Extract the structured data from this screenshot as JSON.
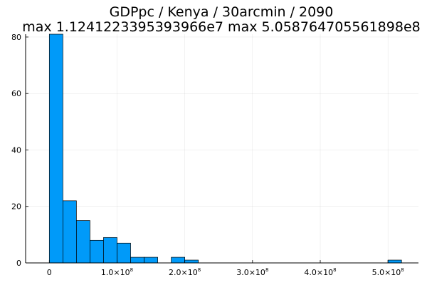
{
  "chart_data": {
    "type": "bar",
    "title": "GDPpc / Kenya / 30arcmin / 2090",
    "subtitle": "max 1.1241223395393966e7  max 5.058764705561898e8",
    "xlabel": "",
    "ylabel": "",
    "xlim": [
      -35000000.0,
      545000000.0
    ],
    "ylim": [
      0,
      81
    ],
    "grid": true,
    "legend": "none",
    "bar_color": "#009af9",
    "bar_edge_color": "#000000",
    "bin_width": 20000000.0,
    "bins_start": [
      0,
      20000000.0,
      40000000.0,
      60000000.0,
      80000000.0,
      100000000.0,
      120000000.0,
      140000000.0,
      160000000.0,
      180000000.0,
      200000000.0,
      220000000.0,
      240000000.0,
      260000000.0,
      280000000.0,
      300000000.0,
      320000000.0,
      340000000.0,
      360000000.0,
      380000000.0,
      400000000.0,
      420000000.0,
      440000000.0,
      460000000.0,
      480000000.0,
      500000000.0
    ],
    "values": [
      81,
      22,
      15,
      8,
      9,
      7,
      2,
      2,
      0,
      2,
      1,
      0,
      0,
      0,
      0,
      0,
      0,
      0,
      0,
      0,
      0,
      0,
      0,
      0,
      0,
      1
    ],
    "y_ticks": [
      {
        "value": 0,
        "label": "0"
      },
      {
        "value": 20,
        "label": "20"
      },
      {
        "value": 40,
        "label": "40"
      },
      {
        "value": 60,
        "label": "60"
      },
      {
        "value": 80,
        "label": "80"
      }
    ],
    "x_ticks": [
      {
        "value": 0,
        "label": "0",
        "exp": ""
      },
      {
        "value": 100000000.0,
        "label": "1.0×10",
        "exp": "8"
      },
      {
        "value": 200000000.0,
        "label": "2.0×10",
        "exp": "8"
      },
      {
        "value": 300000000.0,
        "label": "3.0×10",
        "exp": "8"
      },
      {
        "value": 400000000.0,
        "label": "4.0×10",
        "exp": "8"
      },
      {
        "value": 500000000.0,
        "label": "5.0×10",
        "exp": "8"
      }
    ]
  }
}
